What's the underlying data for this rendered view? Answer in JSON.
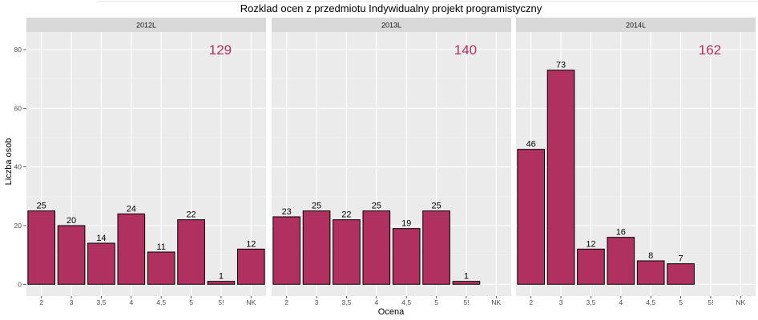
{
  "chart_data": {
    "type": "bar",
    "title": "Rozklad ocen z przedmiotu  Indywidualny projekt programistyczny",
    "xlabel": "Ocena",
    "ylabel": "Liczba osob",
    "ylim": [
      -4,
      86
    ],
    "yticks": [
      0,
      20,
      40,
      60,
      80
    ],
    "categories": [
      "2",
      "3",
      "3,5",
      "4",
      "4,5",
      "5",
      "5!",
      "NK"
    ],
    "bar_color": "#b03060",
    "total_color": "#b03060",
    "panel_bg": "#ebebeb",
    "strip_bg": "#d9d9d9",
    "grid": true,
    "panels": [
      {
        "name": "2012L",
        "total": "129",
        "values": [
          25,
          20,
          14,
          24,
          11,
          22,
          1,
          12
        ]
      },
      {
        "name": "2013L",
        "total": "140",
        "values": [
          23,
          25,
          22,
          25,
          19,
          25,
          1,
          null
        ]
      },
      {
        "name": "2014L",
        "total": "162",
        "values": [
          46,
          73,
          12,
          16,
          8,
          7,
          null,
          null
        ]
      }
    ]
  }
}
